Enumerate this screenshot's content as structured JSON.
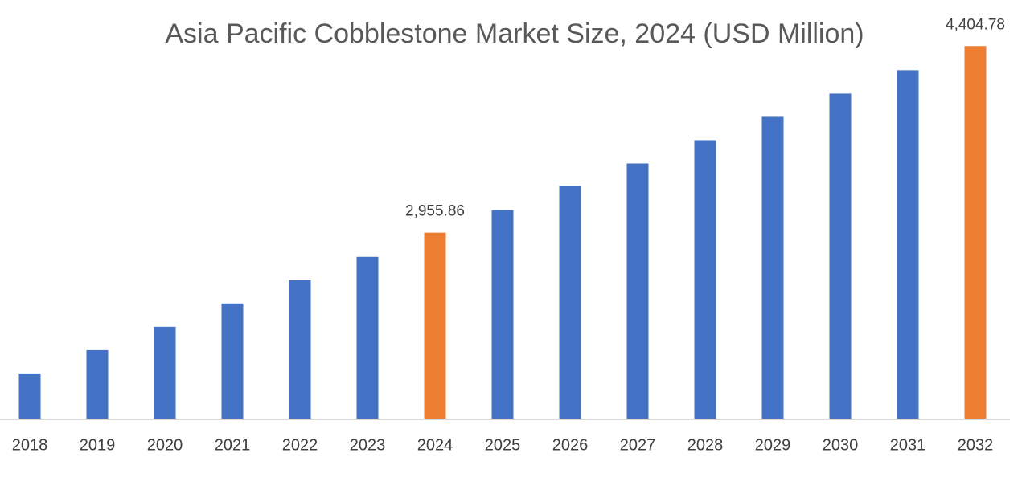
{
  "chart_data": {
    "type": "bar",
    "title": "Asia Pacific Cobblestone Market Size, 2024 (USD Million)",
    "categories": [
      "2018",
      "2019",
      "2020",
      "2021",
      "2022",
      "2023",
      "2024",
      "2025",
      "2026",
      "2027",
      "2028",
      "2029",
      "2030",
      "2031",
      "2032"
    ],
    "values": [
      1863,
      2044,
      2225,
      2406,
      2587,
      2768,
      2955.86,
      3131,
      3318,
      3493,
      3674,
      3855,
      4036,
      4217,
      4404.78
    ],
    "value_labels": [
      null,
      null,
      null,
      null,
      null,
      null,
      "2,955.86",
      null,
      null,
      null,
      null,
      null,
      null,
      null,
      "4,404.78"
    ],
    "colors": [
      "#4472c4",
      "#4472c4",
      "#4472c4",
      "#4472c4",
      "#4472c4",
      "#4472c4",
      "#ed7d31",
      "#4472c4",
      "#4472c4",
      "#4472c4",
      "#4472c4",
      "#4472c4",
      "#4472c4",
      "#4472c4",
      "#ed7d31"
    ],
    "ylim": [
      1507,
      4500
    ]
  }
}
